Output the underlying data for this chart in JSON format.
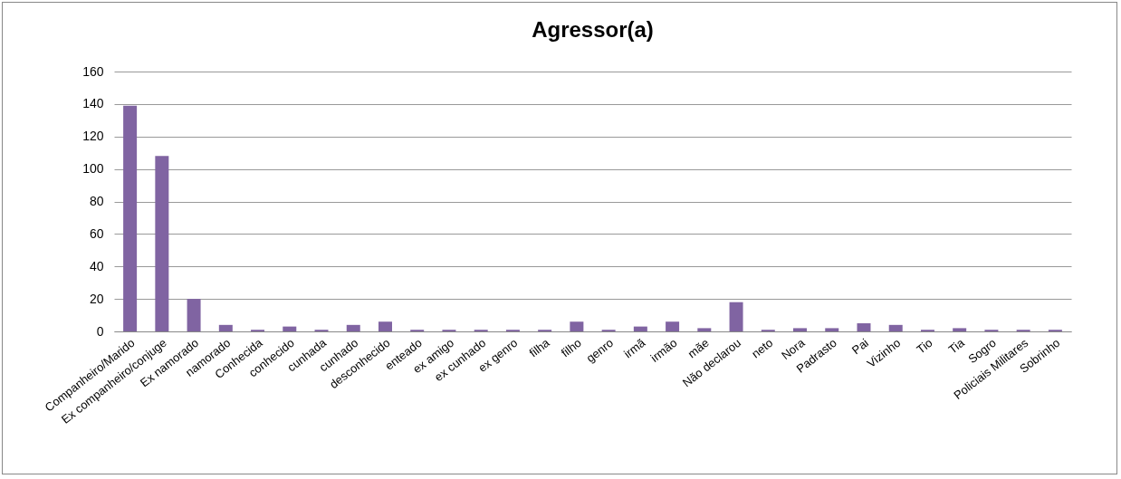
{
  "chart_data": {
    "type": "bar",
    "title": "Agressor(a)",
    "categories": [
      "Companheiro/Marido",
      "Ex companheiro/conjuge",
      "Ex namorado",
      "namorado",
      "Conhecida",
      "conhecido",
      "cunhada",
      "cunhado",
      "desconhecido",
      "enteado",
      "ex amigo",
      "ex cunhado",
      "ex genro",
      "filha",
      "filho",
      "genro",
      "irmã",
      "irmão",
      "mãe",
      "Não declarou",
      "neto",
      "Nora",
      "Padrasto",
      "Pai",
      "Vizinho",
      "Tio",
      "Tia",
      "Sogro",
      "Policiais Militares",
      "Sobrinho"
    ],
    "values": [
      139,
      108,
      20,
      4,
      1,
      3,
      1,
      4,
      6,
      1,
      1,
      1,
      1,
      1,
      6,
      1,
      3,
      6,
      2,
      18,
      1,
      2,
      2,
      5,
      4,
      1,
      2,
      1,
      1,
      1
    ],
    "color": "#8064a2",
    "ylim": [
      0,
      160
    ],
    "yticks": [
      0,
      20,
      40,
      60,
      80,
      100,
      120,
      140,
      160
    ],
    "grid": "y"
  }
}
